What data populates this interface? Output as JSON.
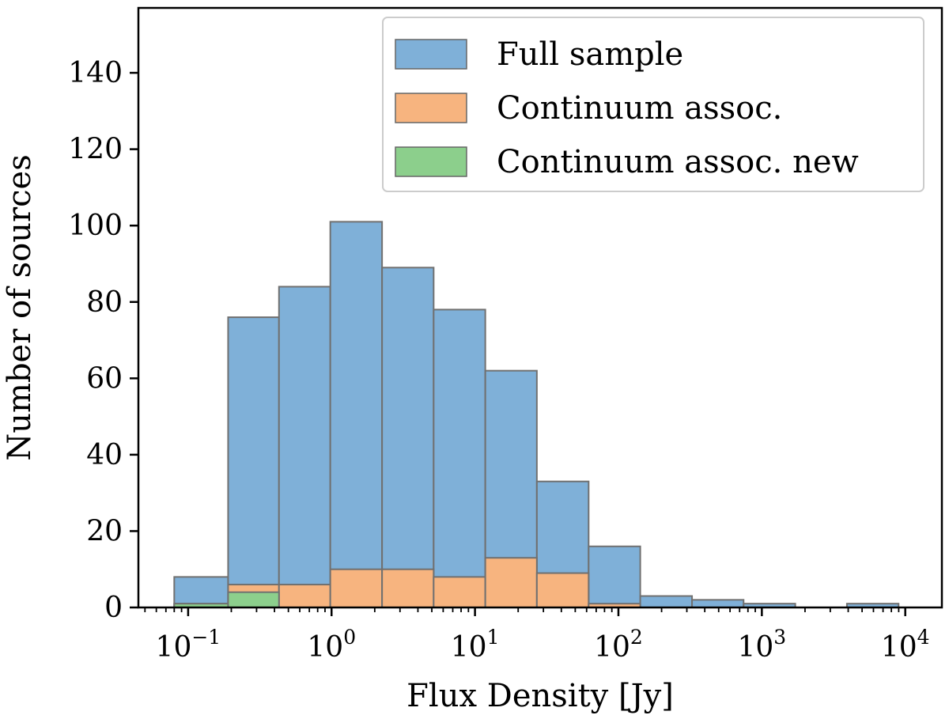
{
  "chart_data": {
    "type": "bar",
    "title": "",
    "xlabel": "Flux Density [Jy]",
    "ylabel": "Number of sources",
    "xscale": "log",
    "xlim": [
      0.045,
      18000
    ],
    "ylim": [
      0,
      157
    ],
    "grid": false,
    "legend_position": "top-right",
    "bin_edges": [
      0.08,
      0.19,
      0.43,
      0.98,
      2.25,
      5.15,
      11.8,
      27.0,
      62.0,
      142.0,
      326.0,
      746.0,
      1710.0,
      3920.0,
      8980.0
    ],
    "series": [
      {
        "name": "Full sample",
        "color": "#7fb0d8",
        "values": [
          8,
          76,
          84,
          101,
          89,
          78,
          62,
          33,
          16,
          3,
          2,
          1,
          0,
          1
        ]
      },
      {
        "name": "Continuum assoc.",
        "color": "#f7b47f",
        "values": [
          1,
          6,
          6,
          10,
          10,
          8,
          13,
          9,
          1,
          0,
          0,
          0,
          0,
          0
        ]
      },
      {
        "name": "Continuum assoc. new",
        "color": "#8ccf8c",
        "values": [
          1,
          4,
          0,
          0,
          0,
          0,
          0,
          0,
          0,
          0,
          0,
          0,
          0,
          0
        ]
      }
    ],
    "y_ticks": [
      "0",
      "20",
      "40",
      "60",
      "80",
      "100",
      "120",
      "140"
    ],
    "x_ticks": [
      {
        "base": "10",
        "exp": "−1"
      },
      {
        "base": "10",
        "exp": "0"
      },
      {
        "base": "10",
        "exp": "1"
      },
      {
        "base": "10",
        "exp": "2"
      },
      {
        "base": "10",
        "exp": "3"
      },
      {
        "base": "10",
        "exp": "4"
      }
    ],
    "x_tick_values": [
      0.1,
      1,
      10,
      100,
      1000,
      10000
    ]
  }
}
